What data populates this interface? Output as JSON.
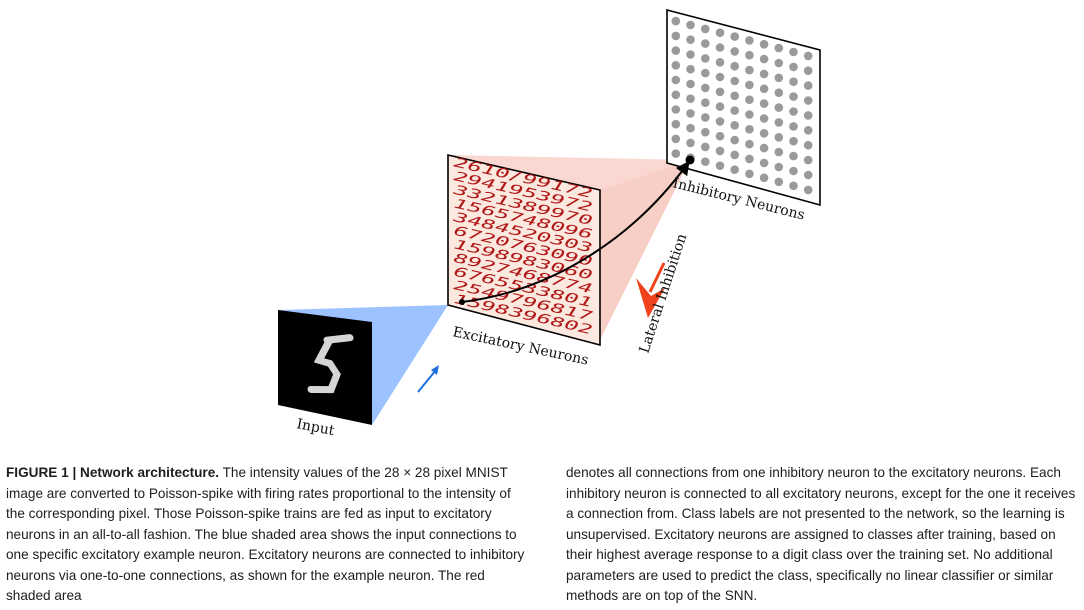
{
  "figure": {
    "label_input": "Input",
    "label_excitatory": "Excitatory Neurons",
    "label_inhibitory": "Inhibitory Neurons",
    "label_lateral": "Lateral Inhibition",
    "digit_rows": [
      "2610/99172",
      "2941953972",
      "3321389970",
      "1565748096",
      "3484520303",
      "6720763090",
      "1598983060",
      "8927468774",
      "6765533801",
      "2549796817",
      "1598396802"
    ],
    "inhibitory_grid": {
      "rows": 10,
      "cols": 10
    },
    "colors": {
      "input_cone": "#9cc2ff",
      "excitatory_cone": "#f8c9c0",
      "panel": "#fbe8df",
      "digit": "#b01818",
      "dot": "#9a9a9a",
      "lateral_arrow": "#f0421c",
      "input_arrow": "#1f6fe0"
    }
  },
  "caption": {
    "label": "FIGURE 1 | Network architecture.",
    "left_text": "The intensity values of the 28 × 28 pixel MNIST image are converted to Poisson-spike with firing rates proportional to the intensity of the corresponding pixel. Those Poisson-spike trains are fed as input to excitatory neurons in an all-to-all fashion. The blue shaded area shows the input connections to one specific excitatory example neuron. Excitatory neurons are connected to inhibitory neurons via one-to-one connections, as shown for the example neuron. The red shaded area",
    "right_text": "denotes all connections from one inhibitory neuron to the excitatory neurons. Each inhibitory neuron is connected to all excitatory neurons, except for the one it receives a connection from. Class labels are not presented to the network, so the learning is unsupervised. Excitatory neurons are assigned to classes after training, based on their highest average response to a digit class over the training set. No additional parameters are used to predict the class, specifically no linear classifier or similar methods are on top of the SNN."
  }
}
